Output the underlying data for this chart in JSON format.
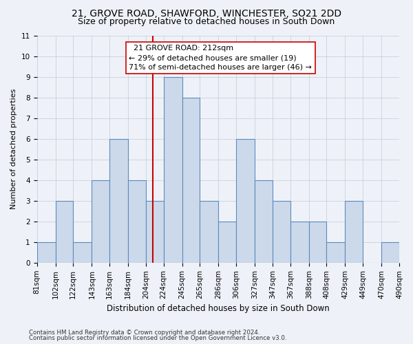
{
  "title_line1": "21, GROVE ROAD, SHAWFORD, WINCHESTER, SO21 2DD",
  "title_line2": "Size of property relative to detached houses in South Down",
  "xlabel": "Distribution of detached houses by size in South Down",
  "ylabel": "Number of detached properties",
  "footnote1": "Contains HM Land Registry data © Crown copyright and database right 2024.",
  "footnote2": "Contains public sector information licensed under the Open Government Licence v3.0.",
  "annotation_title": "21 GROVE ROAD: 212sqm",
  "annotation_line2": "← 29% of detached houses are smaller (19)",
  "annotation_line3": "71% of semi-detached houses are larger (46) →",
  "property_size": 212,
  "bin_edges": [
    81,
    102,
    122,
    143,
    163,
    184,
    204,
    224,
    245,
    265,
    286,
    306,
    327,
    347,
    367,
    388,
    408,
    429,
    449,
    470,
    490
  ],
  "bar_heights": [
    1,
    3,
    1,
    4,
    6,
    4,
    3,
    9,
    8,
    3,
    2,
    6,
    4,
    3,
    2,
    2,
    1,
    3,
    0,
    1
  ],
  "bar_face_color": "#ccd9ea",
  "bar_edge_color": "#5b8abf",
  "vline_color": "#cc0000",
  "ylim": [
    0,
    11
  ],
  "yticks": [
    0,
    1,
    2,
    3,
    4,
    5,
    6,
    7,
    8,
    9,
    10,
    11
  ],
  "grid_color": "#c8d0dc",
  "bg_color": "#eef2f8",
  "annotation_box_facecolor": "#ffffff",
  "annotation_box_edgecolor": "#cc0000",
  "title_fontsize": 10,
  "subtitle_fontsize": 9,
  "axis_label_fontsize": 8.5,
  "tick_fontsize": 7.5,
  "annotation_fontsize": 8,
  "ylabel_fontsize": 8
}
